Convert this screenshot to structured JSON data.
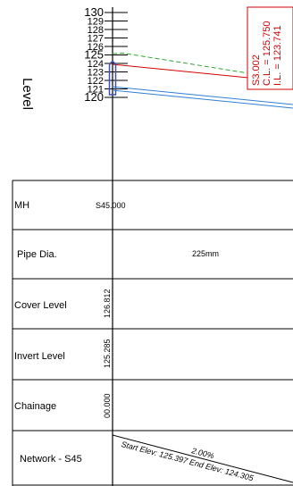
{
  "axis": {
    "label": "Level",
    "ticks": [
      "130",
      "129",
      "128",
      "127",
      "126",
      "125",
      "124",
      "123",
      "122",
      "121",
      "120"
    ]
  },
  "callout": {
    "line1": "S3.002",
    "line2": "C.L. = 125.750",
    "line3": "I.L. = 123.741"
  },
  "table": {
    "rows": [
      {
        "label": "MH",
        "value": "S45.000"
      },
      {
        "label": "Pipe Dia.",
        "value": "225mm"
      },
      {
        "label": "Cover Level",
        "value": "126.812"
      },
      {
        "label": "Invert Level",
        "value": "125.285"
      },
      {
        "label": "Chainage",
        "value": "00.000"
      },
      {
        "label": "Network - S45",
        "value": ""
      }
    ],
    "network": {
      "gradient": "2.00%",
      "elev_text": "Start Elev: 125.397 End Elev: 124.305"
    }
  },
  "colors": {
    "ground": "#d40000",
    "cover_dashed": "#2aaa2a",
    "pipe": "#2f7fd6",
    "callout": "#d40000",
    "manhole": "#3f51b5"
  }
}
